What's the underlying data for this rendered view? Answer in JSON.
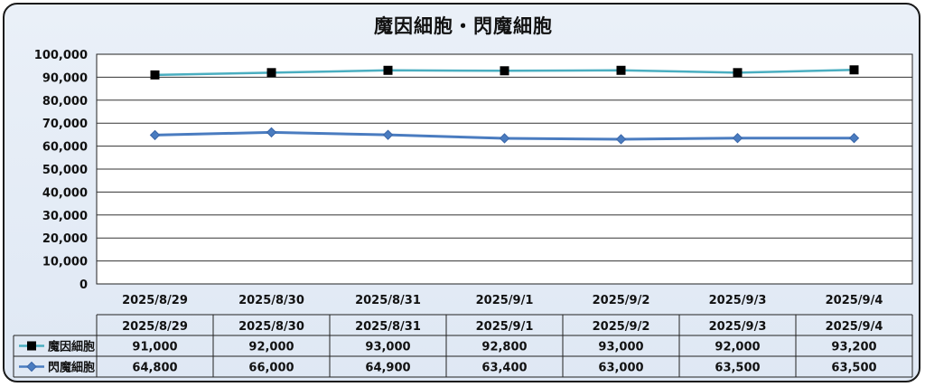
{
  "chart_data": {
    "type": "line",
    "title": "魔因細胞・閃魔細胞",
    "categories": [
      "2025/8/29",
      "2025/8/30",
      "2025/8/31",
      "2025/9/1",
      "2025/9/2",
      "2025/9/3",
      "2025/9/4"
    ],
    "series": [
      {
        "name": "魔因細胞",
        "values": [
          91000,
          92000,
          93000,
          92800,
          93000,
          92000,
          93200
        ],
        "color": "#4aaec0",
        "marker": "square",
        "display": [
          "91,000",
          "92,000",
          "93,000",
          "92,800",
          "93,000",
          "92,000",
          "93,200"
        ]
      },
      {
        "name": "閃魔細胞",
        "values": [
          64800,
          66000,
          64900,
          63400,
          63000,
          63500,
          63500
        ],
        "color": "#4a7cc0",
        "marker": "diamond",
        "display": [
          "64,800",
          "66,000",
          "64,900",
          "63,400",
          "63,000",
          "63,500",
          "63,500"
        ]
      }
    ],
    "ylim": [
      0,
      100000
    ],
    "yticks": [
      "0",
      "10,000",
      "20,000",
      "30,000",
      "40,000",
      "50,000",
      "60,000",
      "70,000",
      "80,000",
      "90,000",
      "100,000"
    ],
    "grid": true,
    "legend": "data-table"
  }
}
